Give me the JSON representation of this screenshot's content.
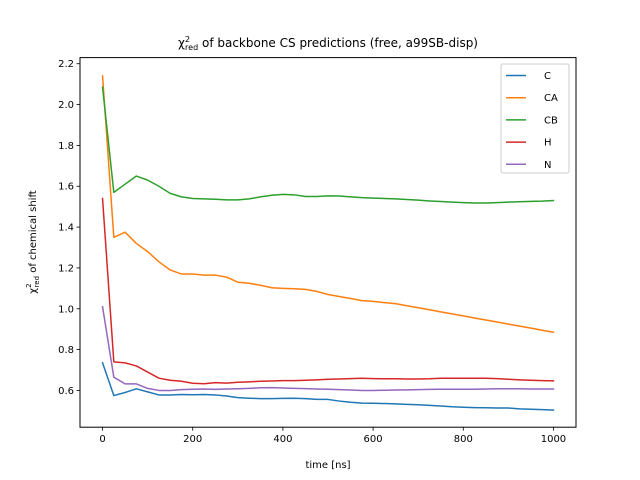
{
  "chart_data": {
    "type": "line",
    "title_prefix": "χ",
    "title_sup": "2",
    "title_sub": "red",
    "title_rest": " of backbone CS  predictions (free, a99SB-disp)",
    "xlabel": "time [ns]",
    "ylabel_prefix": "χ",
    "ylabel_sup": "2",
    "ylabel_sub": "red",
    "ylabel_rest": " of chemical shift",
    "xlim": [
      -50,
      1050
    ],
    "ylim": [
      0.42,
      2.23
    ],
    "xticks": [
      "0",
      "200",
      "400",
      "600",
      "800",
      "1000"
    ],
    "yticks": [
      "0.6",
      "0.8",
      "1.0",
      "1.2",
      "1.4",
      "1.6",
      "1.8",
      "2.0",
      "2.2"
    ],
    "legend_position": "top-right",
    "x": [
      0,
      25,
      50,
      75,
      100,
      125,
      150,
      175,
      200,
      225,
      250,
      275,
      300,
      325,
      350,
      375,
      400,
      425,
      450,
      475,
      500,
      525,
      550,
      575,
      600,
      625,
      650,
      675,
      700,
      725,
      750,
      775,
      800,
      825,
      850,
      875,
      900,
      925,
      950,
      975,
      1000
    ],
    "series": [
      {
        "name": "C",
        "color": "#1f77b4",
        "values": [
          0.735,
          0.575,
          0.59,
          0.608,
          0.593,
          0.578,
          0.578,
          0.58,
          0.579,
          0.58,
          0.578,
          0.573,
          0.565,
          0.562,
          0.56,
          0.56,
          0.561,
          0.562,
          0.56,
          0.556,
          0.556,
          0.548,
          0.542,
          0.538,
          0.537,
          0.536,
          0.534,
          0.532,
          0.53,
          0.527,
          0.524,
          0.52,
          0.518,
          0.516,
          0.515,
          0.514,
          0.514,
          0.51,
          0.508,
          0.506,
          0.504
        ]
      },
      {
        "name": "CA",
        "color": "#ff7f0e",
        "values": [
          2.14,
          1.35,
          1.375,
          1.32,
          1.28,
          1.23,
          1.19,
          1.17,
          1.17,
          1.165,
          1.165,
          1.155,
          1.13,
          1.125,
          1.115,
          1.103,
          1.1,
          1.098,
          1.095,
          1.085,
          1.07,
          1.06,
          1.05,
          1.04,
          1.036,
          1.03,
          1.025,
          1.015,
          1.005,
          0.995,
          0.985,
          0.975,
          0.965,
          0.955,
          0.945,
          0.935,
          0.925,
          0.915,
          0.905,
          0.895,
          0.885
        ]
      },
      {
        "name": "CB",
        "color": "#2ca02c",
        "values": [
          2.085,
          1.57,
          1.61,
          1.65,
          1.63,
          1.6,
          1.565,
          1.548,
          1.54,
          1.538,
          1.536,
          1.533,
          1.533,
          1.538,
          1.548,
          1.556,
          1.56,
          1.558,
          1.55,
          1.55,
          1.553,
          1.552,
          1.548,
          1.544,
          1.542,
          1.54,
          1.538,
          1.535,
          1.532,
          1.528,
          1.525,
          1.522,
          1.52,
          1.518,
          1.518,
          1.52,
          1.522,
          1.524,
          1.526,
          1.527,
          1.53
        ]
      },
      {
        "name": "H",
        "color": "#d62728",
        "values": [
          1.54,
          0.74,
          0.735,
          0.72,
          0.69,
          0.66,
          0.65,
          0.645,
          0.635,
          0.633,
          0.638,
          0.636,
          0.64,
          0.642,
          0.645,
          0.646,
          0.648,
          0.648,
          0.65,
          0.652,
          0.655,
          0.656,
          0.658,
          0.66,
          0.658,
          0.657,
          0.657,
          0.656,
          0.656,
          0.657,
          0.66,
          0.66,
          0.66,
          0.66,
          0.66,
          0.658,
          0.655,
          0.652,
          0.65,
          0.648,
          0.647
        ]
      },
      {
        "name": "N",
        "color": "#9467bd",
        "values": [
          1.01,
          0.665,
          0.632,
          0.632,
          0.61,
          0.6,
          0.6,
          0.604,
          0.606,
          0.607,
          0.605,
          0.607,
          0.608,
          0.61,
          0.613,
          0.614,
          0.612,
          0.61,
          0.609,
          0.607,
          0.606,
          0.604,
          0.602,
          0.6,
          0.6,
          0.601,
          0.602,
          0.603,
          0.604,
          0.605,
          0.606,
          0.606,
          0.606,
          0.606,
          0.607,
          0.608,
          0.608,
          0.608,
          0.607,
          0.607,
          0.607
        ]
      }
    ]
  }
}
